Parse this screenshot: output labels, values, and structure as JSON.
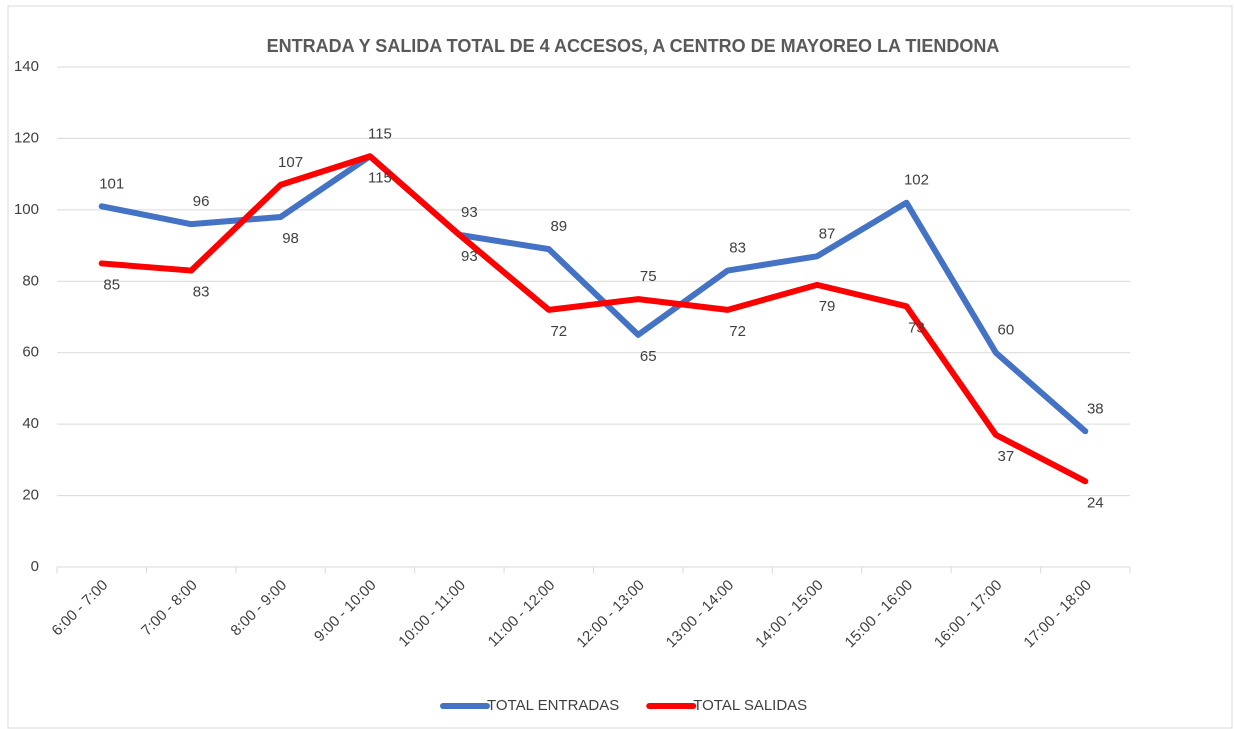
{
  "chart_data": {
    "type": "line",
    "title": "ENTRADA Y SALIDA TOTAL DE 4 ACCESOS, A CENTRO DE MAYOREO LA TIENDONA",
    "categories": [
      "6:00 - 7:00",
      "7:00 - 8:00",
      "8:00 - 9:00",
      "9:00 - 10:00",
      "10:00 - 11:00",
      "11:00 - 12:00",
      "12:00 - 13:00",
      "13:00 - 14:00",
      "14:00 - 15:00",
      "15:00 - 16:00",
      "16:00 - 17:00",
      "17:00 - 18:00"
    ],
    "series": [
      {
        "name": "TOTAL ENTRADAS",
        "color": "#4472c4",
        "values": [
          101,
          96,
          98,
          115,
          93,
          89,
          65,
          83,
          87,
          102,
          60,
          38
        ]
      },
      {
        "name": "TOTAL SALIDAS",
        "color": "#ff0000",
        "values": [
          85,
          83,
          107,
          115,
          93,
          72,
          75,
          72,
          79,
          73,
          37,
          24
        ]
      }
    ],
    "ylim": [
      0,
      140
    ],
    "yticks": [
      0,
      20,
      40,
      60,
      80,
      100,
      120,
      140
    ],
    "grid": true,
    "legend": "bottom"
  }
}
